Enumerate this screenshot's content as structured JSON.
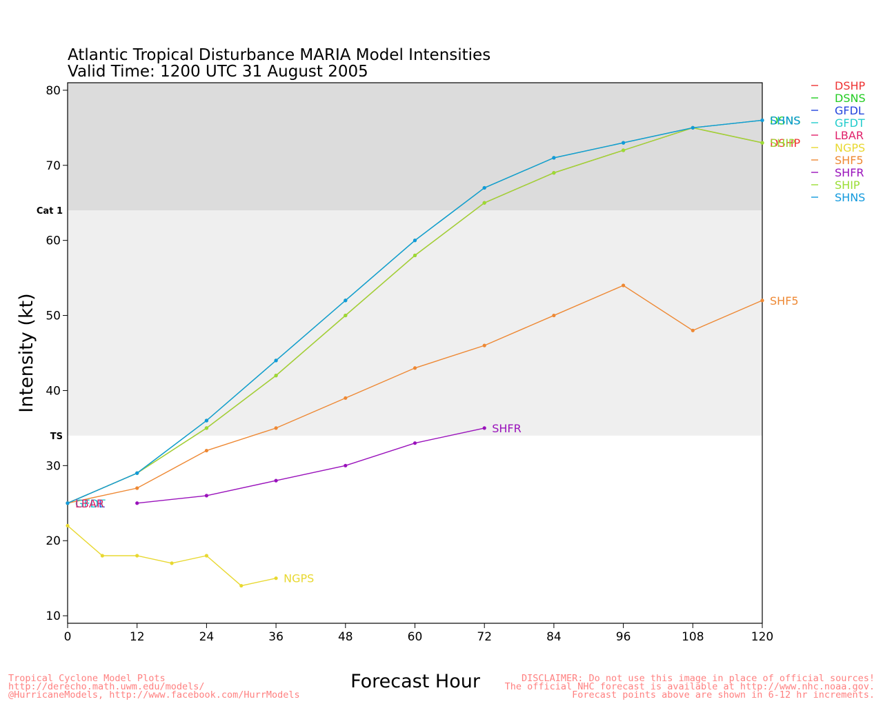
{
  "chart_data": {
    "type": "line",
    "title": "Atlantic Tropical Disturbance MARIA Model Intensities",
    "subtitle": "Valid Time: 1200 UTC 31 August 2005",
    "xlabel": "Forecast Hour",
    "ylabel": "Intensity (kt)",
    "xlim": [
      0,
      120
    ],
    "ylim": [
      9,
      81
    ],
    "xticks": [
      0,
      12,
      24,
      36,
      48,
      60,
      72,
      84,
      96,
      108,
      120
    ],
    "yticks": [
      10,
      20,
      30,
      40,
      50,
      60,
      70,
      80
    ],
    "bands": [
      {
        "label": "TS",
        "from": 34,
        "to": 64,
        "color": "#efefef"
      },
      {
        "label": "Cat  1",
        "from": 64,
        "to": 81,
        "color": "#dcdcdc"
      }
    ],
    "legend_position": "right",
    "series": [
      {
        "name": "DSHP",
        "color": "#ee3333",
        "x": [
          0,
          12,
          24,
          36,
          48,
          60,
          72,
          84,
          96,
          108,
          120
        ],
        "y": [
          25,
          29,
          35,
          42,
          50,
          58,
          65,
          69,
          72,
          75,
          73
        ],
        "end_label": "DSHP"
      },
      {
        "name": "DSNS",
        "color": "#22cc22",
        "x": [
          0,
          12,
          24,
          36,
          48,
          60,
          72,
          84,
          96,
          108,
          120
        ],
        "y": [
          25,
          29,
          36,
          44,
          52,
          60,
          67,
          71,
          73,
          75,
          76
        ],
        "end_label": "DSNS"
      },
      {
        "name": "GFDL",
        "color": "#2244dd",
        "x": [
          0
        ],
        "y": [
          25
        ],
        "end_label": "GFDL"
      },
      {
        "name": "GFDT",
        "color": "#22cccc",
        "x": [
          0
        ],
        "y": [
          25
        ],
        "end_label": "GFDT"
      },
      {
        "name": "LBAR",
        "color": "#e0206a",
        "x": [
          0
        ],
        "y": [
          25
        ],
        "end_label": "LBAR"
      },
      {
        "name": "NGPS",
        "color": "#e8d830",
        "x": [
          0,
          6,
          12,
          18,
          24,
          30,
          36
        ],
        "y": [
          22,
          18,
          18,
          17,
          18,
          14,
          15
        ],
        "end_label": "NGPS"
      },
      {
        "name": "SHF5",
        "color": "#ee8833",
        "x": [
          0,
          12,
          24,
          36,
          48,
          60,
          72,
          84,
          96,
          108,
          120
        ],
        "y": [
          25,
          27,
          32,
          35,
          39,
          43,
          46,
          50,
          54,
          48,
          52
        ],
        "end_label": "SHF5"
      },
      {
        "name": "SHFR",
        "color": "#9911bb",
        "x": [
          12,
          24,
          36,
          48,
          60,
          72
        ],
        "y": [
          25,
          26,
          28,
          30,
          33,
          35
        ],
        "end_label": "SHFR"
      },
      {
        "name": "SHIP",
        "color": "#99dd33",
        "x": [
          0,
          12,
          24,
          36,
          48,
          60,
          72,
          84,
          96,
          108,
          120
        ],
        "y": [
          25,
          29,
          35,
          42,
          50,
          58,
          65,
          69,
          72,
          75,
          73
        ],
        "end_label": "SHIP"
      },
      {
        "name": "SHNS",
        "color": "#1199dd",
        "x": [
          0,
          12,
          24,
          36,
          48,
          60,
          72,
          84,
          96,
          108,
          120
        ],
        "y": [
          25,
          29,
          36,
          44,
          52,
          60,
          67,
          71,
          73,
          75,
          76
        ],
        "end_label": "SHNS"
      }
    ]
  },
  "footer": {
    "left": [
      "Tropical Cyclone Model Plots",
      "http://derecho.math.uwm.edu/models/",
      "@HurricaneModels, http://www.facebook.com/HurrModels"
    ],
    "right": [
      "DISCLAIMER: Do not use this image in place of official sources!",
      "The official NHC forecast is available at http://www.nhc.noaa.gov.",
      "Forecast points above are shown in 6-12 hr increments."
    ]
  }
}
